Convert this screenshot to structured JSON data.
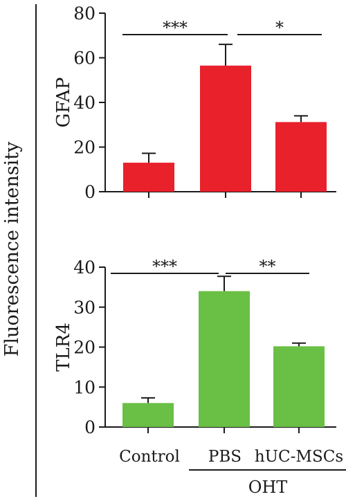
{
  "figure": {
    "side_label": "Fluorescence intensity",
    "group_label": "OHT"
  },
  "chart_data": [
    {
      "type": "bar",
      "title": "",
      "xlabel": "",
      "ylabel": "GFAP",
      "categories": [
        "Control",
        "PBS",
        "hUC-MSCs"
      ],
      "values": [
        13,
        56.5,
        31.2
      ],
      "errors": [
        4.2,
        9.5,
        2.8
      ],
      "ylim": [
        0,
        80
      ],
      "yticks": [
        0,
        20,
        40,
        60,
        80
      ],
      "color": "#e8212b",
      "grid": false,
      "significance": [
        {
          "from": 0,
          "to": 1,
          "label": "***"
        },
        {
          "from": 1,
          "to": 2,
          "label": "*"
        }
      ]
    },
    {
      "type": "bar",
      "title": "",
      "xlabel": "",
      "ylabel": "TLR4",
      "categories": [
        "Control",
        "PBS",
        "hUC-MSCs"
      ],
      "values": [
        6,
        34,
        20.2
      ],
      "errors": [
        1.3,
        3.7,
        0.8
      ],
      "ylim": [
        0,
        40
      ],
      "yticks": [
        0,
        10,
        20,
        30,
        40
      ],
      "color": "#6abf45",
      "grid": false,
      "significance": [
        {
          "from": 0,
          "to": 1,
          "label": "***"
        },
        {
          "from": 1,
          "to": 2,
          "label": "**"
        }
      ]
    }
  ]
}
